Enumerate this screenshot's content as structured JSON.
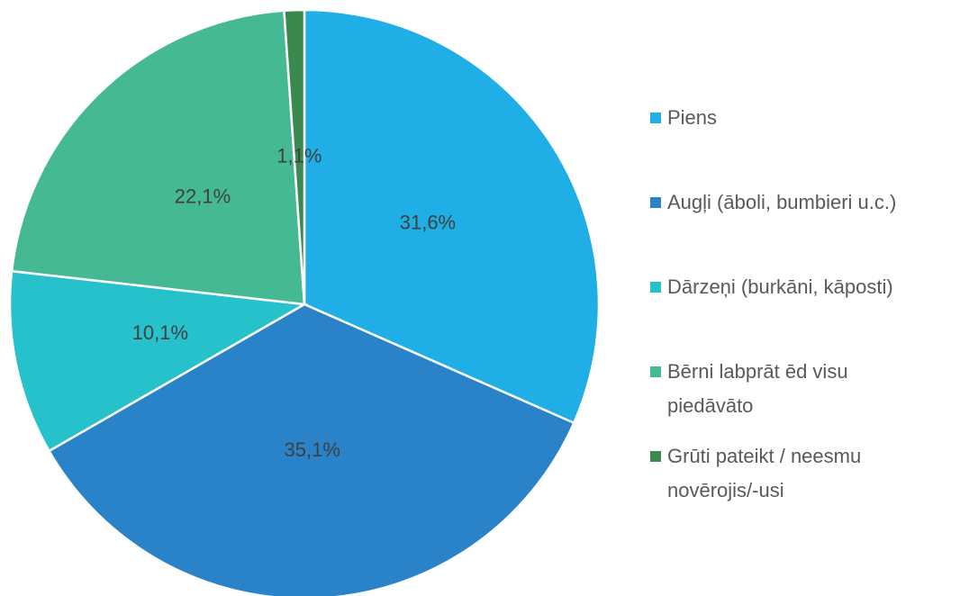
{
  "chart_data": {
    "type": "pie",
    "categories": [
      "Piens",
      "Augļi (āboli, bumbieri u.c.)",
      "Dārzeņi (burkāni, kāposti)",
      "Bērni labprāt ēd visu piedāvāto",
      "Grūti pateikt / neesmu novērojis/-usi"
    ],
    "values": [
      31.6,
      35.1,
      10.1,
      22.1,
      1.1
    ],
    "value_labels": [
      "31,6%",
      "35,1%",
      "10,1%",
      "22,1%",
      "1,1%"
    ],
    "colors": [
      "#1faee5",
      "#2a82c8",
      "#27c1cb",
      "#44b994",
      "#3a8a50"
    ],
    "legend": "right"
  }
}
